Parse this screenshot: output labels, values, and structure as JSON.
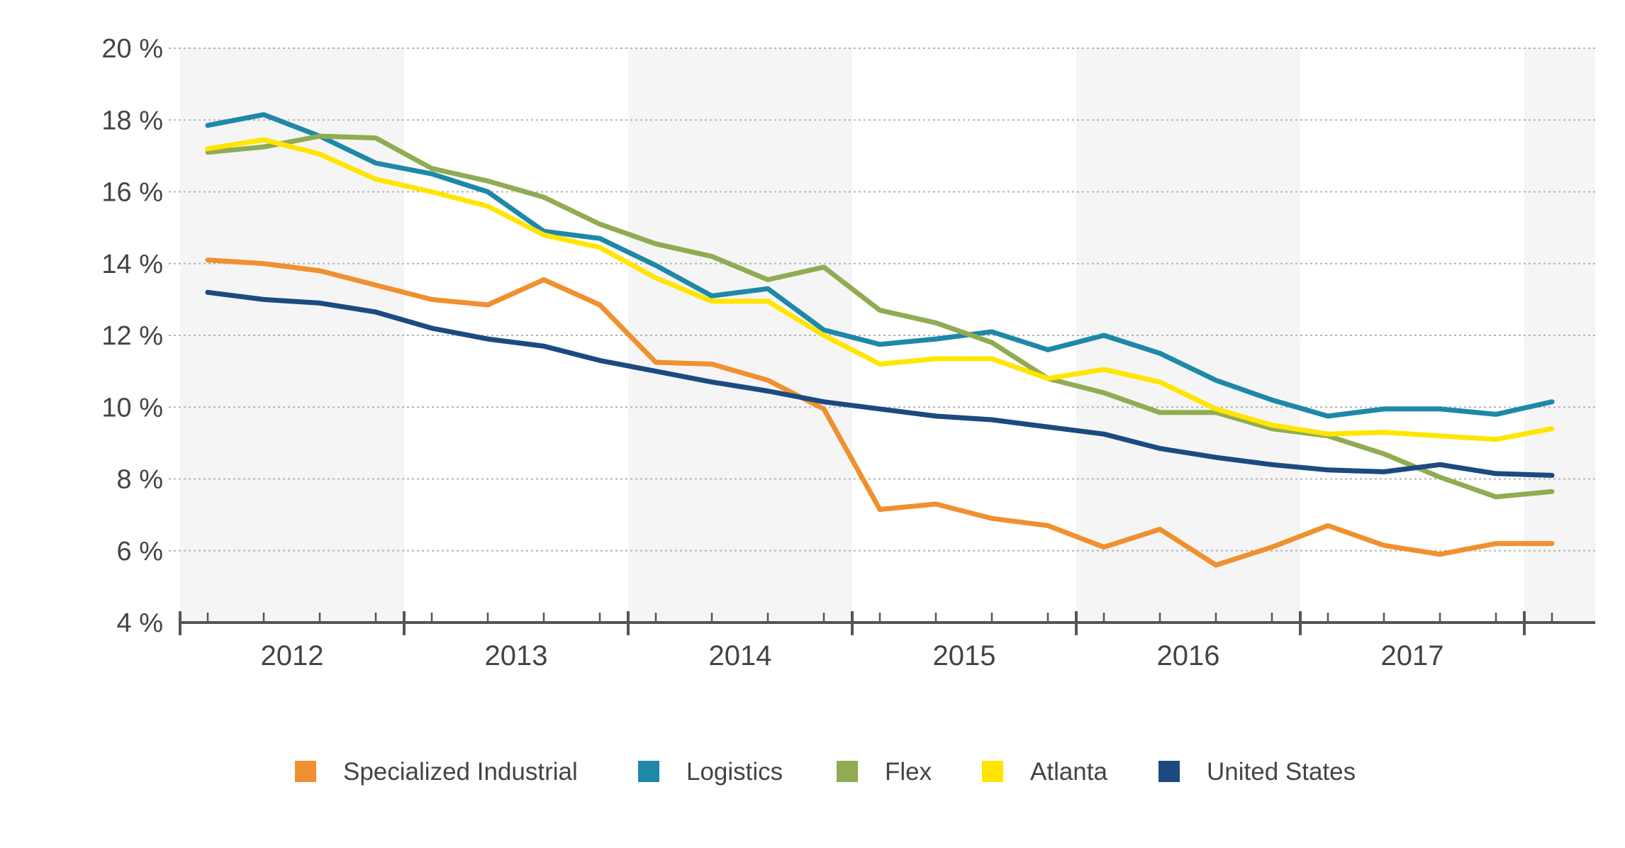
{
  "chart_data": {
    "type": "line",
    "title": "",
    "xlabel": "",
    "ylabel": "",
    "ylim": [
      4,
      20
    ],
    "y_ticks": [
      "4 %",
      "6 %",
      "8 %",
      "10 %",
      "12 %",
      "14 %",
      "16 %",
      "18 %",
      "20 %"
    ],
    "y_tick_values": [
      4,
      6,
      8,
      10,
      12,
      14,
      16,
      18,
      20
    ],
    "years": [
      "2012",
      "2013",
      "2014",
      "2015",
      "2016",
      "2017"
    ],
    "grid": true,
    "legend_position": "bottom-center",
    "x": [
      "2012 Q1",
      "2012 Q2",
      "2012 Q3",
      "2012 Q4",
      "2013 Q1",
      "2013 Q2",
      "2013 Q3",
      "2013 Q4",
      "2014 Q1",
      "2014 Q2",
      "2014 Q3",
      "2014 Q4",
      "2015 Q1",
      "2015 Q2",
      "2015 Q3",
      "2015 Q4",
      "2016 Q1",
      "2016 Q2",
      "2016 Q3",
      "2016 Q4",
      "2017 Q1",
      "2017 Q2",
      "2017 Q3",
      "2017 Q4",
      "2018 Q1"
    ],
    "series": [
      {
        "name": "Specialized Industrial",
        "color": "#f0902e",
        "values": [
          14.1,
          14.0,
          13.8,
          13.4,
          13.0,
          12.85,
          13.55,
          12.85,
          11.25,
          11.2,
          10.75,
          9.95,
          7.15,
          7.3,
          6.9,
          6.7,
          6.1,
          6.6,
          5.6,
          6.1,
          6.7,
          6.15,
          5.9,
          6.2,
          6.2
        ]
      },
      {
        "name": "Logistics",
        "color": "#1e88a8",
        "values": [
          17.85,
          18.15,
          17.55,
          16.8,
          16.5,
          16.0,
          14.9,
          14.7,
          13.95,
          13.1,
          13.3,
          12.15,
          11.75,
          11.9,
          12.1,
          11.6,
          12.0,
          11.5,
          10.75,
          10.2,
          9.75,
          9.95,
          9.95,
          9.8,
          10.15
        ]
      },
      {
        "name": "Flex",
        "color": "#91ab52",
        "values": [
          17.1,
          17.25,
          17.55,
          17.5,
          16.65,
          16.3,
          15.85,
          15.1,
          14.55,
          14.2,
          13.55,
          13.9,
          12.7,
          12.35,
          11.8,
          10.8,
          10.4,
          9.85,
          9.85,
          9.4,
          9.2,
          8.7,
          8.05,
          7.5,
          7.65
        ]
      },
      {
        "name": "Atlanta",
        "color": "#ffe500",
        "values": [
          17.2,
          17.45,
          17.05,
          16.35,
          16.0,
          15.6,
          14.8,
          14.45,
          13.6,
          12.95,
          12.95,
          12.0,
          11.2,
          11.35,
          11.35,
          10.8,
          11.05,
          10.7,
          9.95,
          9.5,
          9.25,
          9.3,
          9.2,
          9.1,
          9.4
        ]
      },
      {
        "name": "United States",
        "color": "#1c4a80",
        "values": [
          13.2,
          13.0,
          12.9,
          12.65,
          12.2,
          11.9,
          11.7,
          11.3,
          11.0,
          10.7,
          10.45,
          10.15,
          9.95,
          9.75,
          9.65,
          9.45,
          9.25,
          8.85,
          8.6,
          8.4,
          8.25,
          8.2,
          8.4,
          8.15,
          8.1
        ]
      }
    ]
  }
}
